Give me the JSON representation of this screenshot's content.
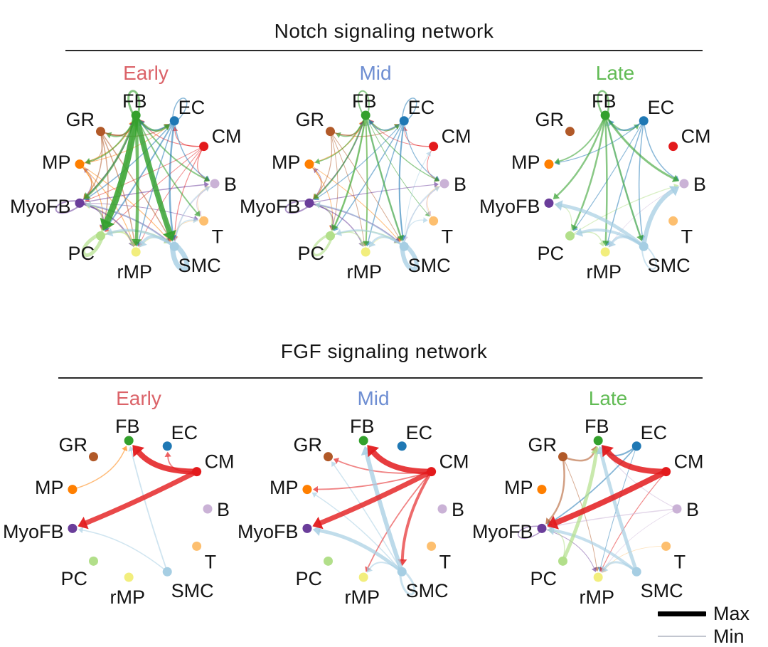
{
  "legend": {
    "max_label": "Max",
    "min_label": "Min"
  },
  "nodes": [
    {
      "id": "B",
      "color": "#cab2d6",
      "angle": 0
    },
    {
      "id": "CM",
      "color": "#e31a1c",
      "angle": 32.7
    },
    {
      "id": "EC",
      "color": "#1f78b4",
      "angle": 65.5
    },
    {
      "id": "FB",
      "color": "#33a02c",
      "angle": 98.2
    },
    {
      "id": "GR",
      "color": "#b15928",
      "angle": 130.9
    },
    {
      "id": "MP",
      "color": "#ff7f00",
      "angle": 163.6
    },
    {
      "id": "MyoFB",
      "color": "#6a3d9a",
      "angle": 196.4
    },
    {
      "id": "PC",
      "color": "#b2df8a",
      "angle": 229.1
    },
    {
      "id": "rMP",
      "color": "#f2ee7d",
      "angle": 261.8
    },
    {
      "id": "SMC",
      "color": "#a6cee3",
      "angle": 294.5
    },
    {
      "id": "T",
      "color": "#fdbf6f",
      "angle": 327.3
    }
  ],
  "sections": [
    {
      "title": "Notch signaling network",
      "panels": [
        {
          "label": "Early",
          "label_color": "#db6369",
          "edges": [
            [
              "FB",
              "FB",
              3
            ],
            [
              "FB",
              "PC",
              9
            ],
            [
              "FB",
              "SMC",
              7.5
            ],
            [
              "FB",
              "rMP",
              4.5
            ],
            [
              "FB",
              "MyoFB",
              3
            ],
            [
              "FB",
              "EC",
              2.5
            ],
            [
              "FB",
              "B",
              2
            ],
            [
              "FB",
              "T",
              2
            ],
            [
              "FB",
              "MP",
              2
            ],
            [
              "FB",
              "GR",
              2
            ],
            [
              "EC",
              "EC",
              1.5
            ],
            [
              "EC",
              "FB",
              2
            ],
            [
              "EC",
              "SMC",
              2.5
            ],
            [
              "EC",
              "PC",
              2
            ],
            [
              "EC",
              "MyoFB",
              1.5
            ],
            [
              "EC",
              "B",
              1.5
            ],
            [
              "EC",
              "rMP",
              1.5
            ],
            [
              "CM",
              "FB",
              1.2
            ],
            [
              "CM",
              "EC",
              1.2
            ],
            [
              "CM",
              "B",
              1.2
            ],
            [
              "CM",
              "SMC",
              1.2
            ],
            [
              "CM",
              "PC",
              1
            ],
            [
              "CM",
              "MyoFB",
              1
            ],
            [
              "CM",
              "rMP",
              1
            ],
            [
              "GR",
              "FB",
              2
            ],
            [
              "GR",
              "EC",
              1.5
            ],
            [
              "GR",
              "MyoFB",
              1.5
            ],
            [
              "GR",
              "PC",
              1.5
            ],
            [
              "GR",
              "rMP",
              1.5
            ],
            [
              "GR",
              "SMC",
              1.5
            ],
            [
              "GR",
              "MP",
              1
            ],
            [
              "MP",
              "FB",
              1.5
            ],
            [
              "MP",
              "MyoFB",
              1.5
            ],
            [
              "MP",
              "PC",
              1.2
            ],
            [
              "MP",
              "rMP",
              1.2
            ],
            [
              "MP",
              "SMC",
              1.2
            ],
            [
              "MP",
              "EC",
              1
            ],
            [
              "MyoFB",
              "MyoFB",
              2
            ],
            [
              "MyoFB",
              "FB",
              2
            ],
            [
              "MyoFB",
              "PC",
              2
            ],
            [
              "MyoFB",
              "rMP",
              2
            ],
            [
              "MyoFB",
              "SMC",
              2
            ],
            [
              "MyoFB",
              "B",
              1.5
            ],
            [
              "MyoFB",
              "T",
              1
            ],
            [
              "MyoFB",
              "MP",
              1
            ],
            [
              "PC",
              "PC",
              5
            ],
            [
              "PC",
              "FB",
              2.5
            ],
            [
              "PC",
              "MyoFB",
              2
            ],
            [
              "PC",
              "rMP",
              2
            ],
            [
              "PC",
              "SMC",
              2
            ],
            [
              "rMP",
              "FB",
              1.2
            ],
            [
              "rMP",
              "MyoFB",
              1
            ],
            [
              "rMP",
              "PC",
              1
            ],
            [
              "rMP",
              "SMC",
              1
            ],
            [
              "SMC",
              "SMC",
              7
            ],
            [
              "SMC",
              "rMP",
              4
            ],
            [
              "SMC",
              "PC",
              3.5
            ],
            [
              "SMC",
              "MyoFB",
              2
            ],
            [
              "SMC",
              "T",
              1.5
            ],
            [
              "SMC",
              "B",
              1.5
            ],
            [
              "SMC",
              "FB",
              2
            ],
            [
              "B",
              "T",
              1.2
            ],
            [
              "B",
              "SMC",
              1
            ],
            [
              "T",
              "B",
              1
            ],
            [
              "T",
              "SMC",
              1
            ]
          ]
        },
        {
          "label": "Mid",
          "label_color": "#6e8ed2",
          "edges": [
            [
              "FB",
              "FB",
              2
            ],
            [
              "FB",
              "PC",
              2.5
            ],
            [
              "FB",
              "SMC",
              2.5
            ],
            [
              "FB",
              "rMP",
              2
            ],
            [
              "FB",
              "MyoFB",
              2
            ],
            [
              "FB",
              "EC",
              1.5
            ],
            [
              "FB",
              "B",
              1.5
            ],
            [
              "FB",
              "T",
              1
            ],
            [
              "FB",
              "MP",
              1.5
            ],
            [
              "FB",
              "GR",
              1.5
            ],
            [
              "EC",
              "EC",
              1.5
            ],
            [
              "EC",
              "FB",
              1.5
            ],
            [
              "EC",
              "SMC",
              2
            ],
            [
              "EC",
              "PC",
              1.5
            ],
            [
              "EC",
              "rMP",
              1.5
            ],
            [
              "EC",
              "B",
              1.2
            ],
            [
              "EC",
              "MyoFB",
              1.2
            ],
            [
              "CM",
              "FB",
              1
            ],
            [
              "CM",
              "EC",
              1
            ],
            [
              "CM",
              "B",
              1
            ],
            [
              "GR",
              "FB",
              1.5
            ],
            [
              "GR",
              "EC",
              1.2
            ],
            [
              "GR",
              "MyoFB",
              1.2
            ],
            [
              "GR",
              "PC",
              1
            ],
            [
              "GR",
              "rMP",
              1
            ],
            [
              "GR",
              "SMC",
              1
            ],
            [
              "MP",
              "FB",
              1.2
            ],
            [
              "MP",
              "MyoFB",
              1.2
            ],
            [
              "MP",
              "PC",
              1
            ],
            [
              "MP",
              "SMC",
              1
            ],
            [
              "MyoFB",
              "MyoFB",
              2
            ],
            [
              "MyoFB",
              "FB",
              1.5
            ],
            [
              "MyoFB",
              "PC",
              1.5
            ],
            [
              "MyoFB",
              "rMP",
              1.5
            ],
            [
              "MyoFB",
              "SMC",
              1.8
            ],
            [
              "MyoFB",
              "B",
              1.2
            ],
            [
              "MyoFB",
              "MP",
              1
            ],
            [
              "PC",
              "PC",
              3.5
            ],
            [
              "PC",
              "FB",
              1.5
            ],
            [
              "PC",
              "MyoFB",
              1.5
            ],
            [
              "PC",
              "rMP",
              1.5
            ],
            [
              "PC",
              "SMC",
              1.5
            ],
            [
              "rMP",
              "FB",
              1
            ],
            [
              "rMP",
              "SMC",
              1
            ],
            [
              "SMC",
              "SMC",
              6
            ],
            [
              "SMC",
              "rMP",
              3
            ],
            [
              "SMC",
              "PC",
              2.5
            ],
            [
              "SMC",
              "MyoFB",
              2
            ],
            [
              "SMC",
              "B",
              1.5
            ],
            [
              "SMC",
              "T",
              1.2
            ],
            [
              "SMC",
              "FB",
              1.5
            ],
            [
              "SMC",
              "CM",
              1
            ],
            [
              "SMC",
              "EC",
              1.5
            ],
            [
              "B",
              "T",
              1
            ],
            [
              "B",
              "SMC",
              1
            ],
            [
              "T",
              "B",
              1
            ]
          ]
        },
        {
          "label": "Late",
          "label_color": "#61bb54",
          "edges": [
            [
              "FB",
              "FB",
              2.5
            ],
            [
              "FB",
              "B",
              3
            ],
            [
              "FB",
              "SMC",
              2.5
            ],
            [
              "FB",
              "rMP",
              2.5
            ],
            [
              "FB",
              "PC",
              2.5
            ],
            [
              "FB",
              "MyoFB",
              2.5
            ],
            [
              "FB",
              "MP",
              2
            ],
            [
              "FB",
              "EC",
              1.5
            ],
            [
              "EC",
              "FB",
              2
            ],
            [
              "EC",
              "B",
              1.5
            ],
            [
              "EC",
              "SMC",
              1.5
            ],
            [
              "EC",
              "rMP",
              1.5
            ],
            [
              "EC",
              "PC",
              1.2
            ],
            [
              "EC",
              "MP",
              1.2
            ],
            [
              "SMC",
              "SMC",
              2
            ],
            [
              "SMC",
              "B",
              6
            ],
            [
              "SMC",
              "MyoFB",
              5
            ],
            [
              "SMC",
              "PC",
              4
            ],
            [
              "SMC",
              "rMP",
              3.5
            ],
            [
              "SMC",
              "FB",
              2
            ],
            [
              "PC",
              "rMP",
              1.5
            ],
            [
              "PC",
              "MyoFB",
              1.2
            ],
            [
              "PC",
              "B",
              1.2
            ],
            [
              "B",
              "rMP",
              0.8
            ]
          ]
        }
      ]
    },
    {
      "title": "FGF signaling network",
      "panels": [
        {
          "label": "Early",
          "label_color": "#db6369",
          "edges": [
            [
              "CM",
              "FB",
              8
            ],
            [
              "CM",
              "MyoFB",
              7
            ],
            [
              "CM",
              "EC",
              1.8
            ],
            [
              "MP",
              "FB",
              1.5
            ],
            [
              "SMC",
              "FB",
              1.8
            ],
            [
              "SMC",
              "MyoFB",
              1.5
            ]
          ]
        },
        {
          "label": "Mid",
          "label_color": "#6e8ed2",
          "edges": [
            [
              "CM",
              "FB",
              8
            ],
            [
              "CM",
              "MyoFB",
              7
            ],
            [
              "CM",
              "SMC",
              4
            ],
            [
              "CM",
              "GR",
              1.8
            ],
            [
              "CM",
              "MP",
              1.8
            ],
            [
              "CM",
              "rMP",
              1.8
            ],
            [
              "SMC",
              "SMC",
              3
            ],
            [
              "SMC",
              "FB",
              6
            ],
            [
              "SMC",
              "MyoFB",
              5
            ],
            [
              "SMC",
              "GR",
              1.5
            ],
            [
              "SMC",
              "MP",
              1.5
            ],
            [
              "SMC",
              "rMP",
              2
            ]
          ]
        },
        {
          "label": "Late",
          "label_color": "#61bb54",
          "edges": [
            [
              "CM",
              "FB",
              8
            ],
            [
              "CM",
              "MyoFB",
              8
            ],
            [
              "CM",
              "rMP",
              1.2
            ],
            [
              "GR",
              "FB",
              2.5
            ],
            [
              "GR",
              "MyoFB",
              2.5
            ],
            [
              "GR",
              "rMP",
              1
            ],
            [
              "PC",
              "FB",
              5
            ],
            [
              "PC",
              "MyoFB",
              1.5
            ],
            [
              "SMC",
              "FB",
              5
            ],
            [
              "SMC",
              "MyoFB",
              4
            ],
            [
              "SMC",
              "rMP",
              3
            ],
            [
              "EC",
              "FB",
              2.2
            ],
            [
              "EC",
              "MyoFB",
              1.8
            ],
            [
              "EC",
              "rMP",
              1
            ],
            [
              "B",
              "MyoFB",
              1.5
            ],
            [
              "B",
              "FB",
              1
            ],
            [
              "B",
              "rMP",
              0.8
            ],
            [
              "MyoFB",
              "MyoFB",
              1.5
            ],
            [
              "MyoFB",
              "rMP",
              1
            ],
            [
              "T",
              "rMP",
              0.8
            ]
          ]
        }
      ]
    }
  ]
}
